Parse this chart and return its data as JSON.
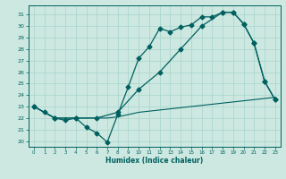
{
  "xlabel": "Humidex (Indice chaleur)",
  "bg_color": "#cce8e0",
  "line_color": "#006060",
  "grid_color": "#a8d4cc",
  "ylim": [
    19.5,
    31.8
  ],
  "xlim": [
    -0.5,
    23.5
  ],
  "yticks": [
    20,
    21,
    22,
    23,
    24,
    25,
    26,
    27,
    28,
    29,
    30,
    31
  ],
  "xticks": [
    0,
    1,
    2,
    3,
    4,
    5,
    6,
    7,
    8,
    9,
    10,
    11,
    12,
    13,
    14,
    15,
    16,
    17,
    18,
    19,
    20,
    21,
    22,
    23
  ],
  "line1_x": [
    0,
    1,
    2,
    3,
    4,
    5,
    6,
    7,
    8,
    9,
    10,
    11,
    12,
    13,
    14,
    15,
    16,
    17,
    18,
    19,
    20,
    21,
    22,
    23
  ],
  "line1_y": [
    23.0,
    22.5,
    22.0,
    21.8,
    22.0,
    21.2,
    20.7,
    19.9,
    22.3,
    24.7,
    27.2,
    28.2,
    29.8,
    29.5,
    29.9,
    30.1,
    30.8,
    30.8,
    31.2,
    31.2,
    30.2,
    28.5,
    25.2,
    23.6
  ],
  "line2_x": [
    0,
    2,
    4,
    6,
    8,
    10,
    12,
    14,
    16,
    18,
    19,
    20,
    21,
    22,
    23
  ],
  "line2_y": [
    23.0,
    22.0,
    22.0,
    22.0,
    22.5,
    24.5,
    26.0,
    28.0,
    30.0,
    31.2,
    31.2,
    30.2,
    28.5,
    25.2,
    23.6
  ],
  "line3_x": [
    0,
    1,
    2,
    3,
    4,
    5,
    6,
    7,
    8,
    9,
    10,
    11,
    12,
    13,
    14,
    15,
    16,
    17,
    18,
    19,
    20,
    21,
    22,
    23
  ],
  "line3_y": [
    23.0,
    22.5,
    22.0,
    22.0,
    22.0,
    22.0,
    22.0,
    22.0,
    22.1,
    22.3,
    22.5,
    22.6,
    22.7,
    22.8,
    22.9,
    23.0,
    23.1,
    23.2,
    23.3,
    23.4,
    23.5,
    23.6,
    23.7,
    23.8
  ]
}
